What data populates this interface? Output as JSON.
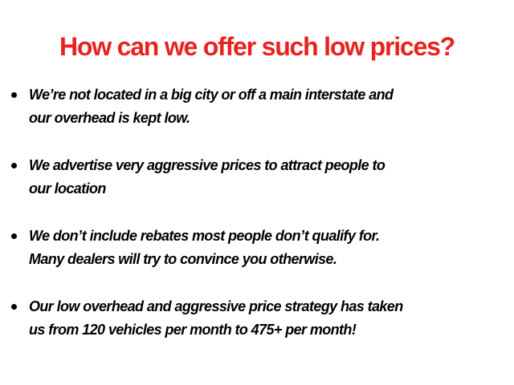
{
  "title": "How can we offer such low prices?",
  "bullets": [
    {
      "lines": [
        "We’re not located in a big city or off a main interstate and",
        "our overhead is kept low."
      ]
    },
    {
      "lines": [
        "We advertise very aggressive prices to attract people to",
        "our location"
      ]
    },
    {
      "lines": [
        "We don’t include rebates most people don’t qualify for.",
        "Many dealers will try to convince you otherwise."
      ]
    },
    {
      "lines": [
        "Our low overhead and aggressive price strategy has taken",
        "us from 120 vehicles per month to 475+ per month!"
      ]
    }
  ],
  "colors": {
    "title": "#e8231f",
    "text": "#000000"
  }
}
